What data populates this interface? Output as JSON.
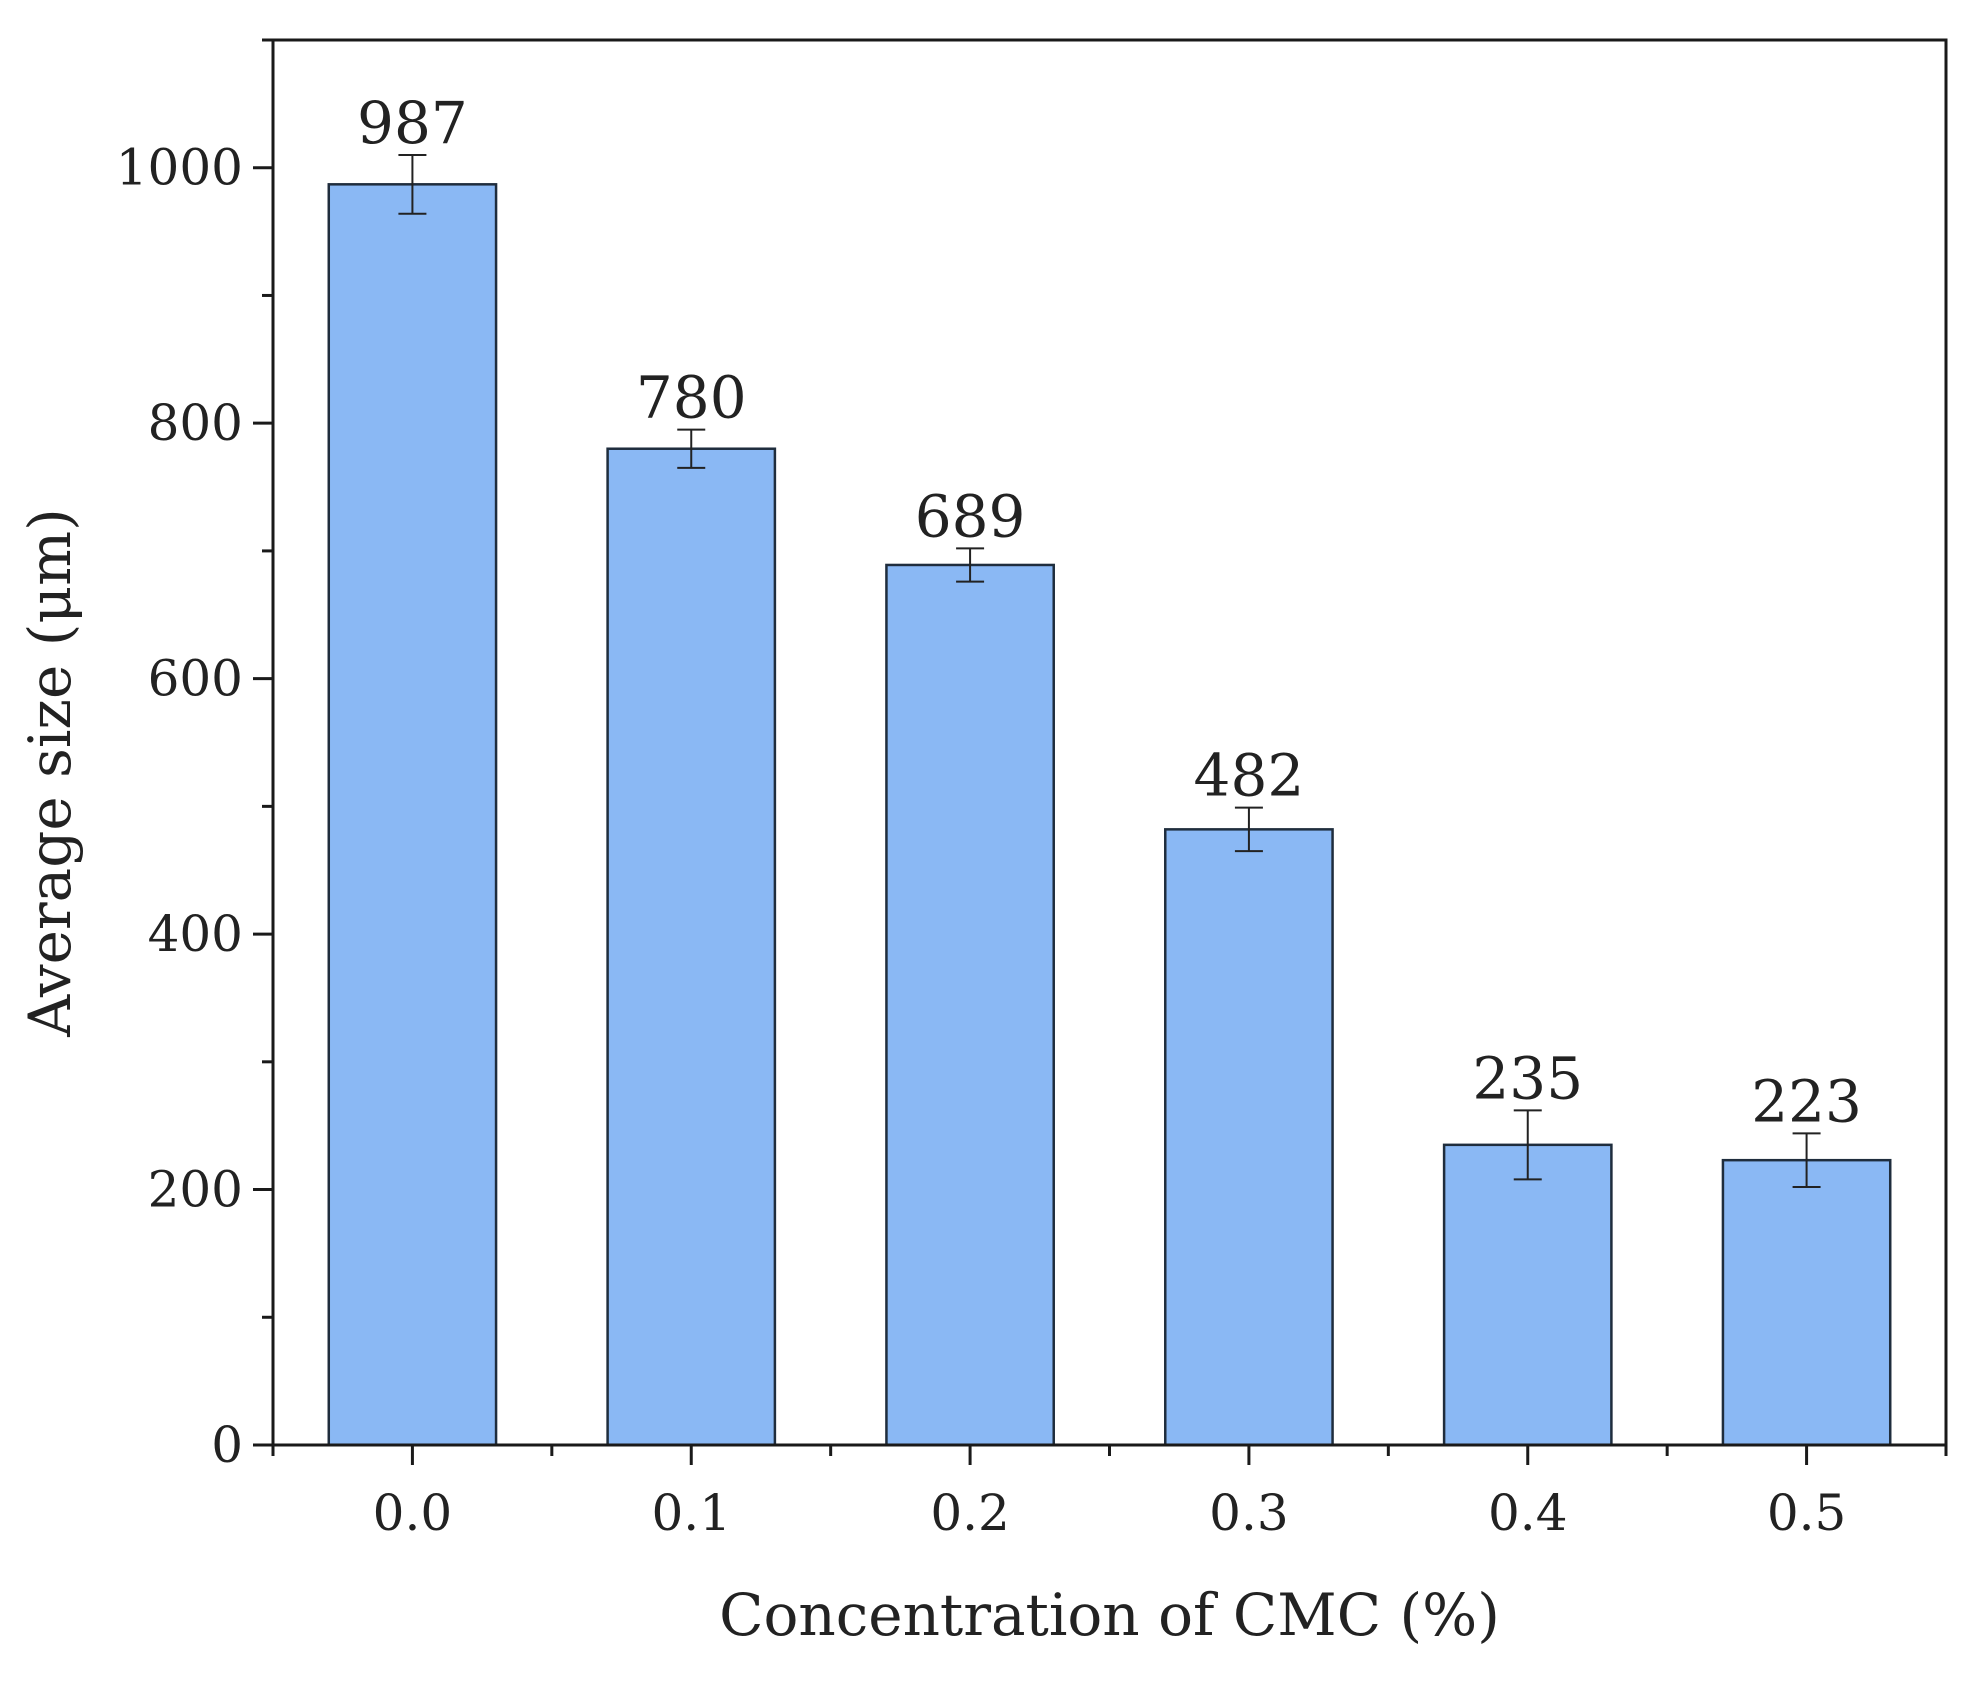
{
  "chart_data": {
    "type": "bar",
    "categories": [
      "0.0",
      "0.1",
      "0.2",
      "0.3",
      "0.4",
      "0.5"
    ],
    "values": [
      987,
      780,
      689,
      482,
      235,
      223
    ],
    "errors": [
      23,
      15,
      13,
      17,
      27,
      21
    ],
    "data_labels": [
      "987",
      "780",
      "689",
      "482",
      "235",
      "223"
    ],
    "title": "",
    "xlabel": "Concentration of CMC (%)",
    "ylabel": "Average size (μm)",
    "ylim": [
      0,
      1100
    ],
    "yticks": [
      0,
      200,
      400,
      600,
      800,
      1000
    ],
    "ytick_labels": [
      "0",
      "200",
      "400",
      "600",
      "800",
      "1000"
    ],
    "grid": false,
    "bar_color": "#8ab8f4",
    "bar_edge_color": "#1f2d3d",
    "axis_color": "#1a1a1a"
  }
}
